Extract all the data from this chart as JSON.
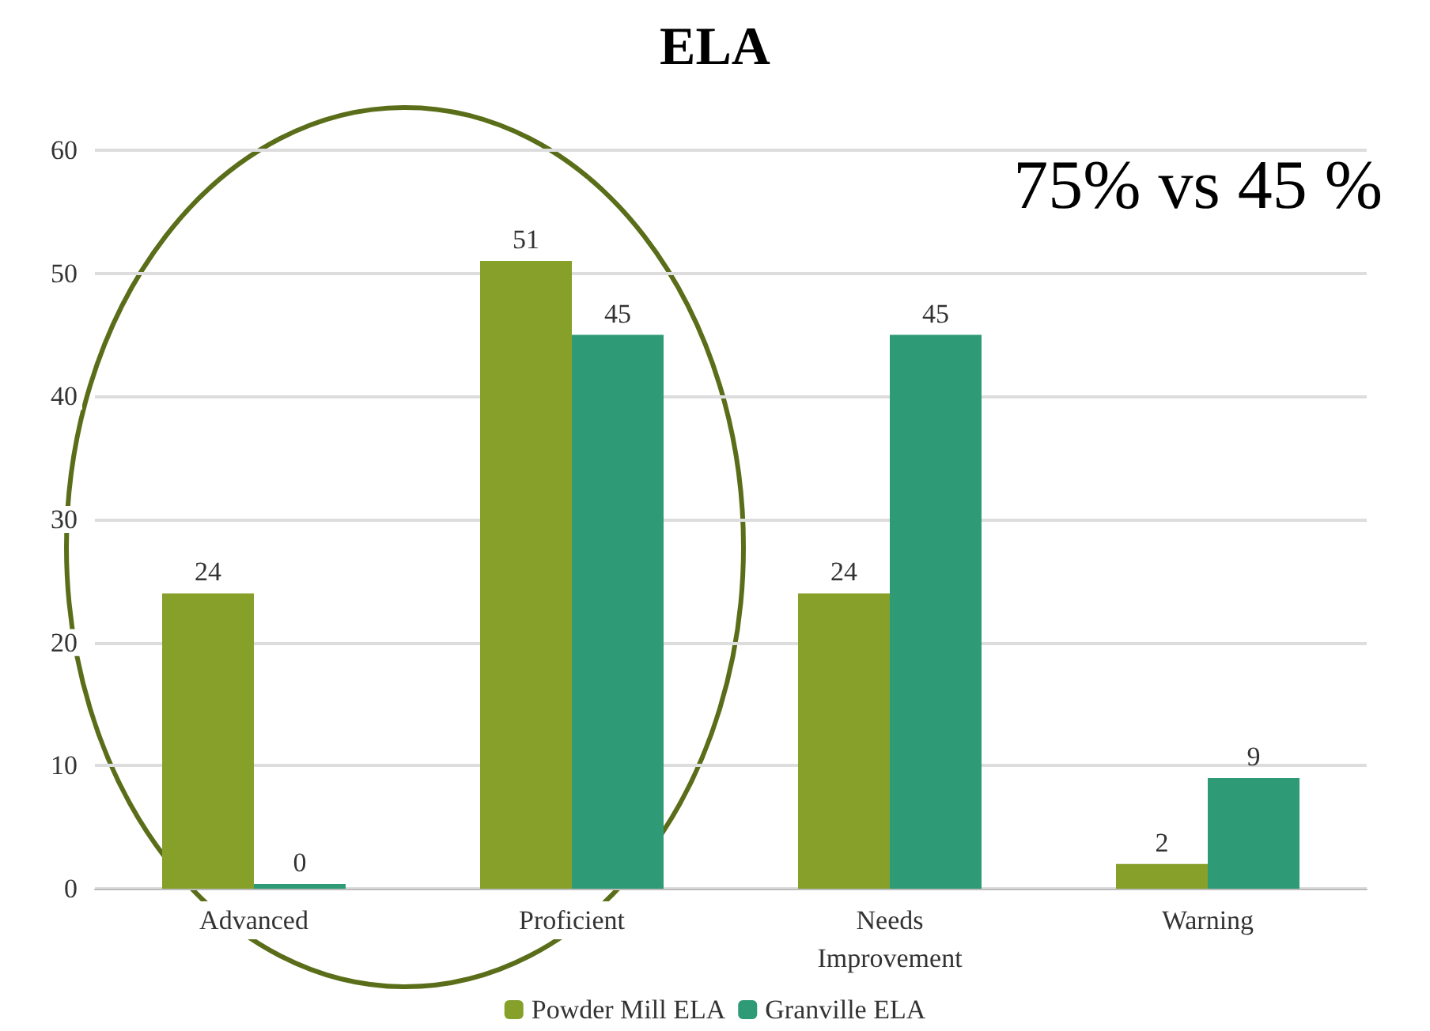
{
  "chart_data": {
    "type": "bar",
    "title": "ELA",
    "categories": [
      "Advanced",
      "Proficient",
      "Needs\nImprovement",
      "Warning"
    ],
    "series": [
      {
        "name": "Powder Mill ELA",
        "color": "#86a02a",
        "values": [
          24,
          51,
          24,
          2
        ]
      },
      {
        "name": "Granville ELA",
        "color": "#2e9a76",
        "values": [
          0,
          45,
          45,
          9
        ]
      }
    ],
    "ylim": [
      0,
      60
    ],
    "yticks": [
      0,
      10,
      20,
      30,
      40,
      50,
      60
    ],
    "grid": "y",
    "legend": "bottom",
    "data_labels": true,
    "annotations": [
      "75% vs 45 %"
    ]
  }
}
